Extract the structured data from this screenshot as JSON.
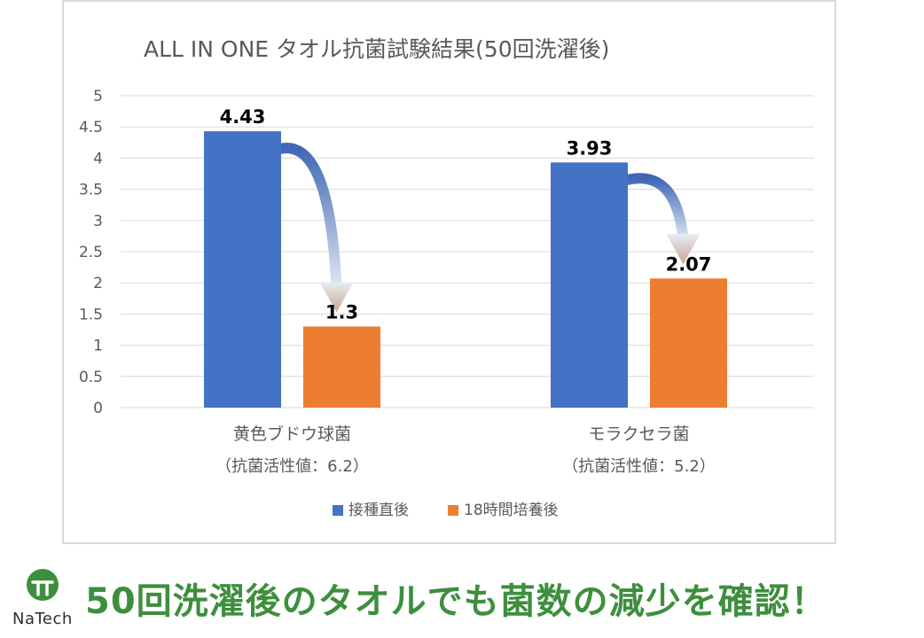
{
  "chart_data": {
    "type": "bar",
    "title": "ALL IN ONE タオル抗菌試験結果(50回洗濯後)",
    "categories": [
      "黄色ブドウ球菌",
      "モラクセラ菌"
    ],
    "category_sublabels": [
      "（抗菌活性値：6.2）",
      "（抗菌活性値：5.2）"
    ],
    "series": [
      {
        "name": "接種直後",
        "color": "#4472c4",
        "values": [
          4.43,
          3.93
        ]
      },
      {
        "name": "18時間培養後",
        "color": "#ed7d31",
        "values": [
          1.3,
          2.07
        ]
      }
    ],
    "data_labels": [
      [
        "4.43",
        "3.93"
      ],
      [
        "1.3",
        "2.07"
      ]
    ],
    "ylim": [
      0,
      5
    ],
    "yticks": [
      "0",
      "0.5",
      "1",
      "1.5",
      "2",
      "2.5",
      "3",
      "3.5",
      "4",
      "4.5",
      "5"
    ],
    "grid": true,
    "legend_position": "bottom",
    "arrow_color": "#4a73bd"
  },
  "banner": {
    "logo_text": "NaTech",
    "logo_color": "#3d8f3d",
    "tagline": "50回洗濯後のタオルでも菌数の減少を確認！",
    "tagline_color": "#3d8f3d"
  }
}
